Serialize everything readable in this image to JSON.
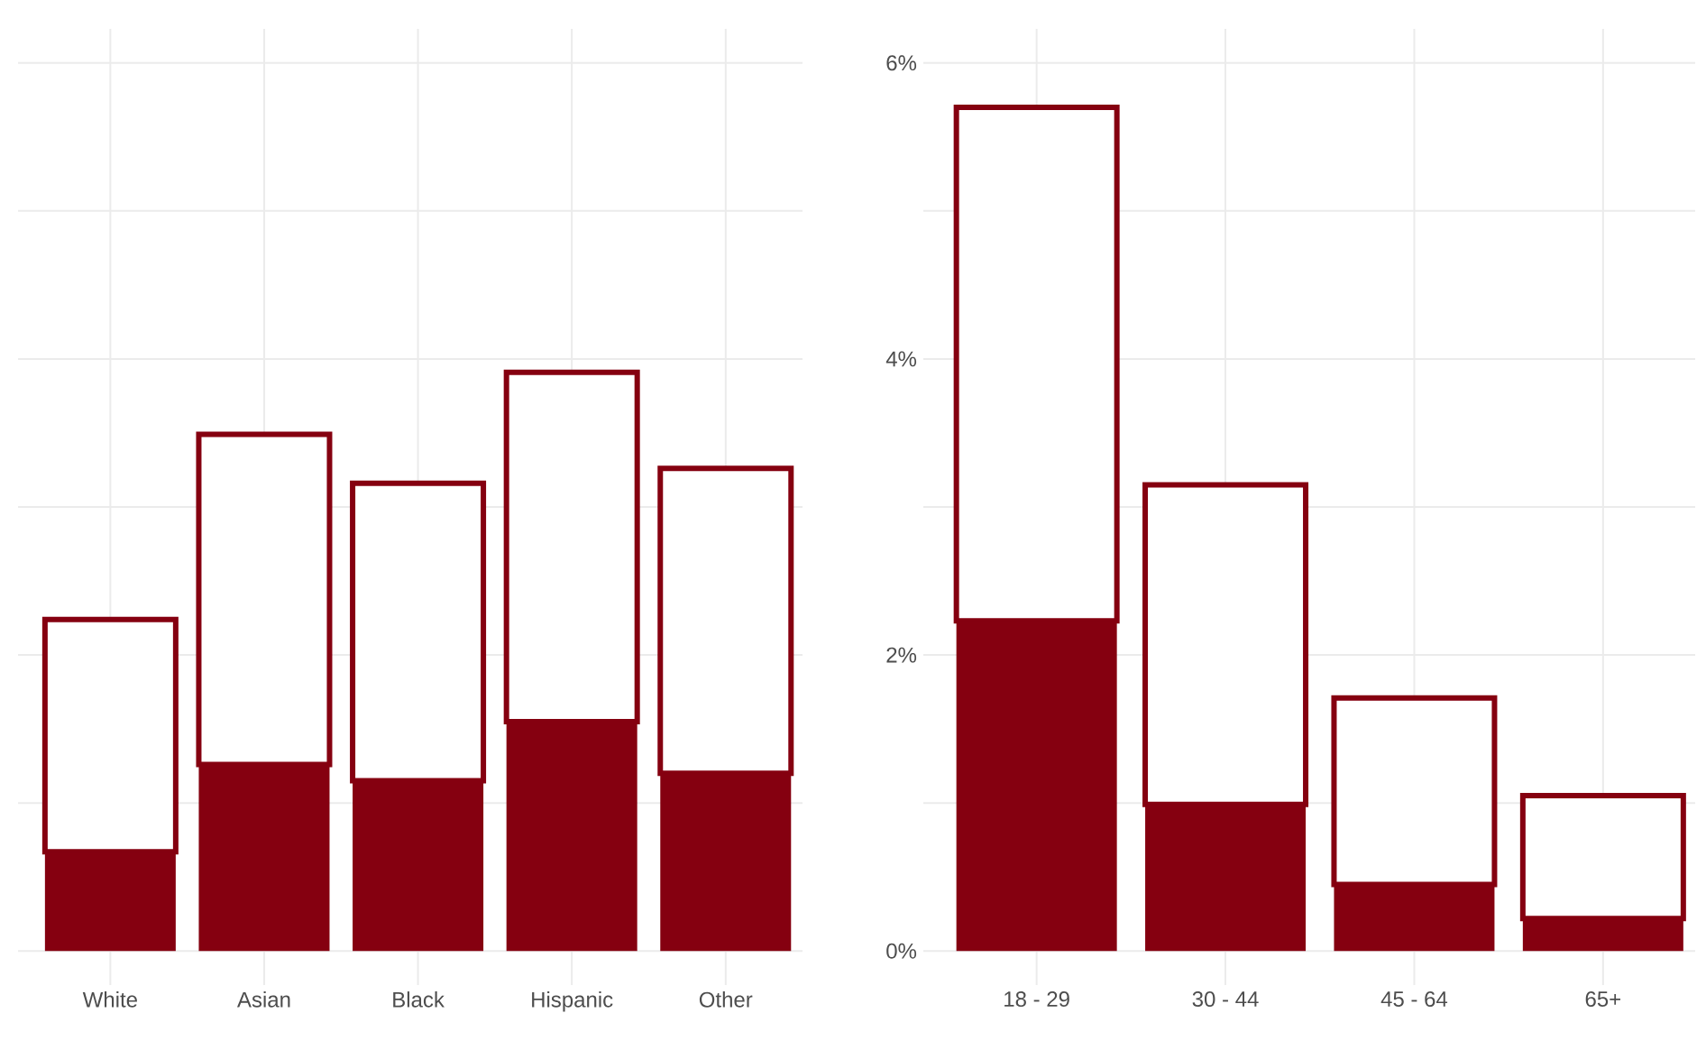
{
  "chart_data": [
    {
      "type": "bar",
      "stacked": true,
      "categories": [
        "White",
        "Asian",
        "Black",
        "Hispanic",
        "Other"
      ],
      "series": [
        {
          "color": "#850010",
          "values": [
            0.67,
            1.26,
            1.15,
            1.55,
            1.2
          ]
        },
        {
          "color": "#850010",
          "values": [
            1.57,
            2.23,
            2.01,
            2.36,
            2.06
          ]
        }
      ],
      "ylim": [
        -0.23,
        6.23
      ],
      "yticks": [
        {
          "value": 0,
          "label": null
        },
        {
          "value": 1,
          "label": null
        },
        {
          "value": 2,
          "label": null
        },
        {
          "value": 3,
          "label": null
        },
        {
          "value": 4,
          "label": null
        },
        {
          "value": 5,
          "label": null
        },
        {
          "value": 6,
          "label": null
        }
      ],
      "grid": true,
      "tick_labels": "x"
    },
    {
      "type": "bar",
      "stacked": true,
      "categories": [
        "18 - 29",
        "30 - 44",
        "45 - 64",
        "65+"
      ],
      "series": [
        {
          "color": "#850010",
          "values": [
            2.23,
            0.99,
            0.45,
            0.22
          ]
        },
        {
          "color": "#850010",
          "values": [
            3.47,
            2.16,
            1.26,
            0.83
          ]
        }
      ],
      "ylim": [
        -0.23,
        6.23
      ],
      "yticks": [
        {
          "value": 0,
          "label": "0%"
        },
        {
          "value": 1,
          "label": null
        },
        {
          "value": 2,
          "label": "2%"
        },
        {
          "value": 3,
          "label": null
        },
        {
          "value": 4,
          "label": "4%"
        },
        {
          "value": 5,
          "label": null
        },
        {
          "value": 6,
          "label": "6%"
        }
      ],
      "grid": true
    }
  ]
}
